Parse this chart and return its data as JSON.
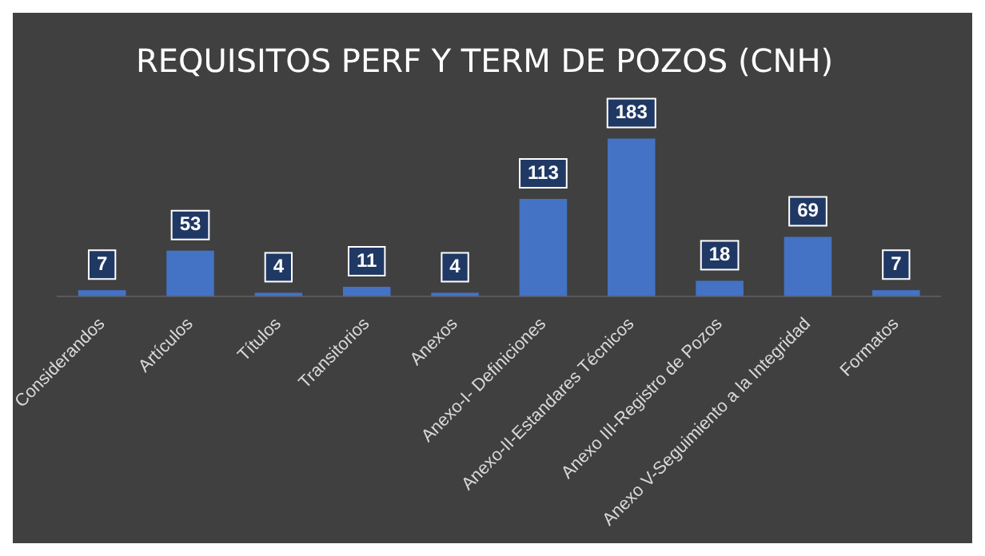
{
  "chart_data": {
    "type": "bar",
    "title": "REQUISITOS PERF Y TERM DE POZOS (CNH)",
    "categories": [
      "Considerandos",
      "Artículos",
      "Títulos",
      "Transitorios",
      "Anexos",
      "Anexo-I- Definiciones",
      "Anexo-II-Estandares Técnicos",
      "Anexo III-Registro de Pozos",
      "Anexo V-Seguimiento a la Integridad",
      "Formatos"
    ],
    "values": [
      7,
      53,
      4,
      11,
      4,
      113,
      183,
      18,
      69,
      7
    ],
    "color": "#4472c4",
    "data_labels": true,
    "grid": false,
    "legend": false
  }
}
